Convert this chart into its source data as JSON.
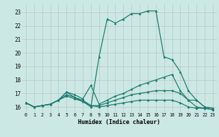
{
  "xlabel": "Humidex (Indice chaleur)",
  "background_color": "#cce8e4",
  "grid_color": "#b0b0b0",
  "line_color": "#1a7a6e",
  "xlim": [
    -0.5,
    23.5
  ],
  "ylim": [
    15.6,
    23.6
  ],
  "yticks": [
    16,
    17,
    18,
    19,
    20,
    21,
    22,
    23
  ],
  "xticks": [
    0,
    1,
    2,
    3,
    4,
    5,
    6,
    7,
    8,
    9,
    10,
    11,
    12,
    13,
    14,
    15,
    16,
    17,
    18,
    19,
    20,
    21,
    22,
    23
  ],
  "series1_x": [
    0,
    1,
    2,
    3,
    4,
    5,
    6,
    7,
    8,
    9,
    10,
    11,
    12,
    13,
    14,
    15,
    16,
    17,
    18,
    19,
    20,
    21,
    22,
    23
  ],
  "series1_y": [
    16.3,
    16.0,
    16.1,
    16.2,
    16.5,
    17.1,
    16.7,
    16.4,
    16.0,
    19.7,
    22.5,
    22.2,
    22.5,
    22.9,
    22.9,
    23.1,
    23.1,
    19.7,
    19.5,
    18.6,
    17.2,
    16.5,
    16.0,
    15.9
  ],
  "series2_x": [
    0,
    1,
    2,
    3,
    4,
    5,
    6,
    7,
    8,
    9,
    10,
    11,
    12,
    13,
    14,
    15,
    16,
    17,
    18,
    19,
    20,
    21,
    22,
    23
  ],
  "series2_y": [
    16.3,
    16.0,
    16.1,
    16.2,
    16.5,
    17.1,
    16.9,
    16.6,
    17.6,
    16.2,
    16.5,
    16.8,
    17.0,
    17.3,
    17.6,
    17.8,
    18.0,
    18.2,
    18.4,
    17.2,
    16.5,
    16.5,
    16.0,
    15.9
  ],
  "series3_x": [
    0,
    1,
    2,
    3,
    4,
    5,
    6,
    7,
    8,
    9,
    10,
    11,
    12,
    13,
    14,
    15,
    16,
    17,
    18,
    19,
    20,
    21,
    22,
    23
  ],
  "series3_y": [
    16.3,
    16.0,
    16.1,
    16.2,
    16.5,
    16.9,
    16.7,
    16.5,
    16.1,
    16.1,
    16.3,
    16.5,
    16.7,
    16.9,
    17.0,
    17.1,
    17.2,
    17.2,
    17.2,
    17.0,
    16.5,
    16.0,
    15.9,
    15.8
  ],
  "series4_x": [
    0,
    1,
    2,
    3,
    4,
    5,
    6,
    7,
    8,
    9,
    10,
    11,
    12,
    13,
    14,
    15,
    16,
    17,
    18,
    19,
    20,
    21,
    22,
    23
  ],
  "series4_y": [
    16.3,
    16.0,
    16.1,
    16.2,
    16.5,
    16.8,
    16.6,
    16.4,
    16.1,
    16.0,
    16.1,
    16.2,
    16.3,
    16.4,
    16.5,
    16.5,
    16.5,
    16.5,
    16.5,
    16.3,
    16.0,
    15.9,
    15.9,
    15.8
  ]
}
